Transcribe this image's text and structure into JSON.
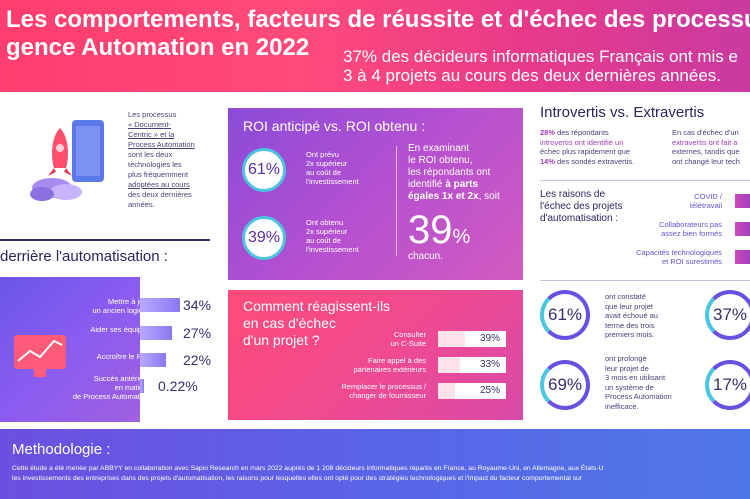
{
  "header": {
    "title_line1": "Les comportements, facteurs de réussite et d'échec des processus",
    "title_line2": "gence Automation en 2022",
    "subtitle_line1": "37% des décideurs informatiques Français ont mis e",
    "subtitle_line2": "3 à 4 projets au cours des deux dernières années."
  },
  "intro": {
    "line1": "Les processus",
    "line2": "« Document-",
    "line3": "Centric » et la",
    "line4": "Process Automation",
    "line5": "sont les deux",
    "line6": "technologies les",
    "line7": "plus fréquemment",
    "line8": "adoptées au cours",
    "line9": "des deux dernières",
    "line10": "années."
  },
  "automation": {
    "title": "derrière l'automatisation :",
    "rows": [
      {
        "label1": "Mettre à jour",
        "label2": "un ancien logiciel",
        "value": "34%",
        "pct": 34
      },
      {
        "label1": "Aider ses équipes",
        "label2": "",
        "value": "27%",
        "pct": 27
      },
      {
        "label1": "Accroître le ROI",
        "label2": "",
        "value": "22%",
        "pct": 22
      },
      {
        "label1": "Succès antérieur",
        "label2": "en matière",
        "label3": "de Process Automation",
        "value": "0.22%",
        "pct": 0.22
      }
    ]
  },
  "roi": {
    "title": "ROI anticipé vs. ROI obtenu :",
    "ring1": "61%",
    "desc1_l1": "Ont prévu",
    "desc1_l2": "2x supérieur",
    "desc1_l3": "au coût de",
    "desc1_l4": "l'investissement",
    "ring2": "39%",
    "desc2_l1": "Ont obtenu",
    "desc2_l2": "2x supérieur",
    "desc2_l3": "au coût de",
    "desc2_l4": "l'investissement",
    "right_l1": "En examinant",
    "right_l2": "le ROI obtenu,",
    "right_l3": "les répondants ont",
    "right_l4a": "identifié ",
    "right_l4b": "à parts",
    "right_l5a": "égales 1x et 2x",
    "right_l5b": ", soit",
    "big_number": "39",
    "big_unit": "%",
    "chacun": "chacun."
  },
  "failure": {
    "title_l1": "Comment réagissent-ils",
    "title_l2": "en cas d'échec",
    "title_l3": "d'un projet ?",
    "rows": [
      {
        "l1": "Consulter",
        "l2": "un C-Suite",
        "value": "39%",
        "pct": 39
      },
      {
        "l1": "Faire appel à des",
        "l2": "partenaires extérieurs",
        "value": "33%",
        "pct": 33
      },
      {
        "l1": "Remplacer le processus /",
        "l2": "changer de fournisseur",
        "value": "25%",
        "pct": 25
      }
    ]
  },
  "introvert": {
    "title": "Introvertis vs. Extravertis",
    "left_pct": "28%",
    "left_l1": " des répondants",
    "left_l2": "introvertis ont identifié un",
    "left_l3": "échec plus rapidement que",
    "left_pct2": "14%",
    "left_l4": " des sondés extravertis.",
    "right_l1": "En cas d'échec d'un",
    "right_l2": "extravertis ont fait a",
    "right_l3": "externes, tandis que",
    "right_l4": "ont changé leur tech"
  },
  "reasons": {
    "title_l1": "Les raisons de",
    "title_l2": "l'échec des projets",
    "title_l3": "d'automatisation :",
    "items": [
      {
        "l1": "COVID /",
        "l2": "télétravail"
      },
      {
        "l1": "Collaborateurs pas",
        "l2": "assez bien formés"
      },
      {
        "l1": "Capacités technologiques",
        "l2": "et ROI surestimés"
      }
    ]
  },
  "stats": {
    "ring_a": "61%",
    "text_a_l1": "ont constaté",
    "text_a_l2": "que leur projet",
    "text_a_l3": "avait échoué au",
    "text_a_l4": "terme des trois",
    "text_a_l5": "premiers mois.",
    "ring_b": "37%",
    "ring_c": "69%",
    "text_c_l1": "ont prolongé",
    "text_c_l2": "leur projet de",
    "text_c_l3": "3 mois en utilisant",
    "text_c_l4": "un système de",
    "text_c_l5": "Process Automation",
    "text_c_l6": "inefficace.",
    "ring_d": "17%"
  },
  "methodology": {
    "title": "Methodologie :",
    "line1": "Cette étude a été menée par ABBYY en collaboration avec Sapio Research en mars 2022 auprès de 1 208 décideurs informatiques répartis en France, au Royaume-Uni, en Allemagne, aux États-U",
    "line2": "les investissements des entreprises dans des projets d'automatisation, les raisons pour lesquelles elles ont opté pour des stratégies technologiques et l'impact du facteur comportemental sur"
  }
}
